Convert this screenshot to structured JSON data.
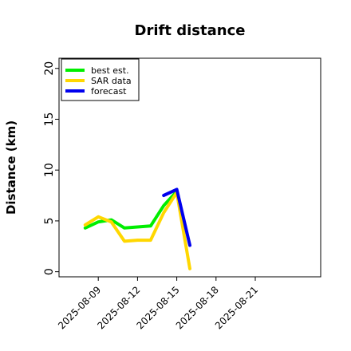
{
  "chart_data": {
    "type": "line",
    "title": "Drift distance",
    "xlabel": "",
    "ylabel": "Distance (km)",
    "ylim": [
      -0.5,
      21
    ],
    "xlim": [
      "2025-08-06",
      "2025-08-26"
    ],
    "y_ticks": [
      0,
      5,
      10,
      15,
      20
    ],
    "x_ticks": [
      "2025-08-09",
      "2025-08-12",
      "2025-08-15",
      "2025-08-18",
      "2025-08-21"
    ],
    "grid": false,
    "legend_position": "top-left",
    "series": [
      {
        "name": "best est.",
        "color": "#00ee00",
        "points": [
          {
            "x": "2025-08-08",
            "y": 4.3
          },
          {
            "x": "2025-08-09",
            "y": 4.9
          },
          {
            "x": "2025-08-10",
            "y": 5.1
          },
          {
            "x": "2025-08-11",
            "y": 4.3
          },
          {
            "x": "2025-08-13",
            "y": 4.5
          },
          {
            "x": "2025-08-14",
            "y": 6.5
          },
          {
            "x": "2025-08-15",
            "y": 7.9
          }
        ]
      },
      {
        "name": "SAR data",
        "color": "#ffd700",
        "points": [
          {
            "x": "2025-08-08",
            "y": 4.6
          },
          {
            "x": "2025-08-09",
            "y": 5.4
          },
          {
            "x": "2025-08-10",
            "y": 4.9
          },
          {
            "x": "2025-08-11",
            "y": 3.0
          },
          {
            "x": "2025-08-12",
            "y": 3.1
          },
          {
            "x": "2025-08-13",
            "y": 3.1
          },
          {
            "x": "2025-08-14",
            "y": 5.8
          },
          {
            "x": "2025-08-15",
            "y": 7.8
          },
          {
            "x": "2025-08-16",
            "y": 0.3
          }
        ]
      },
      {
        "name": "forecast",
        "color": "#0000ee",
        "points": [
          {
            "x": "2025-08-14",
            "y": 7.5
          },
          {
            "x": "2025-08-15",
            "y": 8.1
          },
          {
            "x": "2025-08-16",
            "y": 2.6
          }
        ]
      }
    ]
  }
}
